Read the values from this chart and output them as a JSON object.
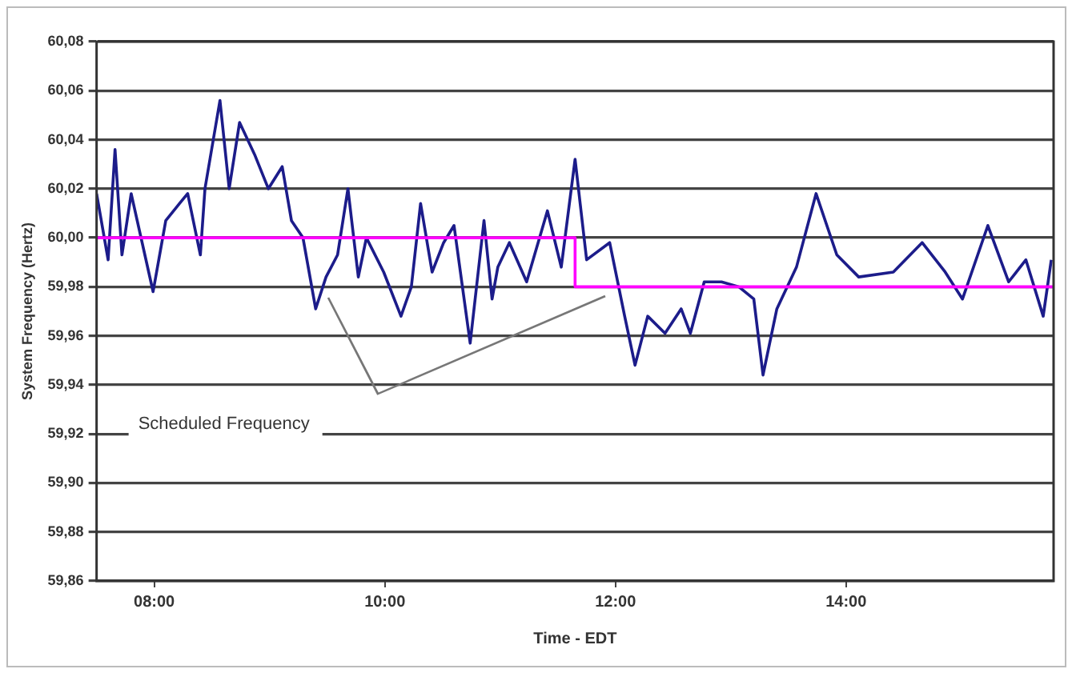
{
  "chart_data": {
    "type": "line",
    "xlabel": "Time - EDT",
    "ylabel": "System Frequency (Hertz)",
    "annotations": [
      "Scheduled Frequency"
    ],
    "xlim": [
      7.5,
      15.8
    ],
    "xticks": [
      {
        "value": 8,
        "label": "08:00"
      },
      {
        "value": 10,
        "label": "10:00"
      },
      {
        "value": 12,
        "label": "12:00"
      },
      {
        "value": 14,
        "label": "14:00"
      }
    ],
    "ylim": [
      59.86,
      60.08
    ],
    "yticks": [
      {
        "value": 59.86,
        "label": "59,86"
      },
      {
        "value": 59.88,
        "label": "59,88"
      },
      {
        "value": 59.9,
        "label": "59,90"
      },
      {
        "value": 59.92,
        "label": "59,92"
      },
      {
        "value": 59.94,
        "label": "59,94"
      },
      {
        "value": 59.96,
        "label": "59,96"
      },
      {
        "value": 59.98,
        "label": "59,98"
      },
      {
        "value": 60,
        "label": "60,00"
      },
      {
        "value": 60.02,
        "label": "60,02"
      },
      {
        "value": 60.04,
        "label": "60,04"
      },
      {
        "value": 60.06,
        "label": "60,06"
      },
      {
        "value": 60.08,
        "label": "60,08"
      }
    ],
    "grid": "y",
    "legend": false,
    "marker": "none",
    "series": [
      {
        "type": "line",
        "color": "#1c1c8a",
        "x": [
          7.5,
          7.6,
          7.66,
          7.72,
          7.8,
          7.99,
          8.1,
          8.22,
          8.29,
          8.4,
          8.44,
          8.57,
          8.65,
          8.74,
          8.87,
          8.99,
          9.11,
          9.19,
          9.29,
          9.4,
          9.49,
          9.59,
          9.68,
          9.77,
          9.84,
          9.99,
          10.14,
          10.23,
          10.31,
          10.41,
          10.51,
          10.6,
          10.74,
          10.86,
          10.93,
          10.98,
          11.08,
          11.23,
          11.41,
          11.53,
          11.65,
          11.75,
          11.95,
          12.08,
          12.17,
          12.28,
          12.43,
          12.57,
          12.65,
          12.77,
          12.92,
          13.07,
          13.2,
          13.28,
          13.4,
          13.57,
          13.74,
          13.92,
          14.11,
          14.41,
          14.66,
          14.86,
          15.01,
          15.23,
          15.41,
          15.56,
          15.71,
          15.78
        ],
        "values": [
          60.018,
          59.991,
          60.036,
          59.993,
          60.018,
          59.978,
          60.007,
          60.014,
          60.018,
          59.993,
          60.02,
          60.056,
          60.02,
          60.047,
          60.034,
          60.02,
          60.029,
          60.007,
          60,
          59.971,
          59.984,
          59.993,
          60.02,
          59.984,
          60,
          59.986,
          59.968,
          59.98,
          60.014,
          59.986,
          59.998,
          60.005,
          59.957,
          60.007,
          59.975,
          59.988,
          59.998,
          59.982,
          60.011,
          59.988,
          60.032,
          59.991,
          59.998,
          59.968,
          59.948,
          59.968,
          59.961,
          59.971,
          59.961,
          59.982,
          59.982,
          59.98,
          59.975,
          59.944,
          59.971,
          59.988,
          60.018,
          59.993,
          59.984,
          59.986,
          59.998,
          59.986,
          59.975,
          60.005,
          59.982,
          59.991,
          59.968,
          59.991
        ]
      },
      {
        "type": "step",
        "color": "#ff00ff",
        "x": [
          7.5,
          11.65,
          15.8
        ],
        "values": [
          60,
          59.98,
          59.98
        ]
      }
    ]
  }
}
